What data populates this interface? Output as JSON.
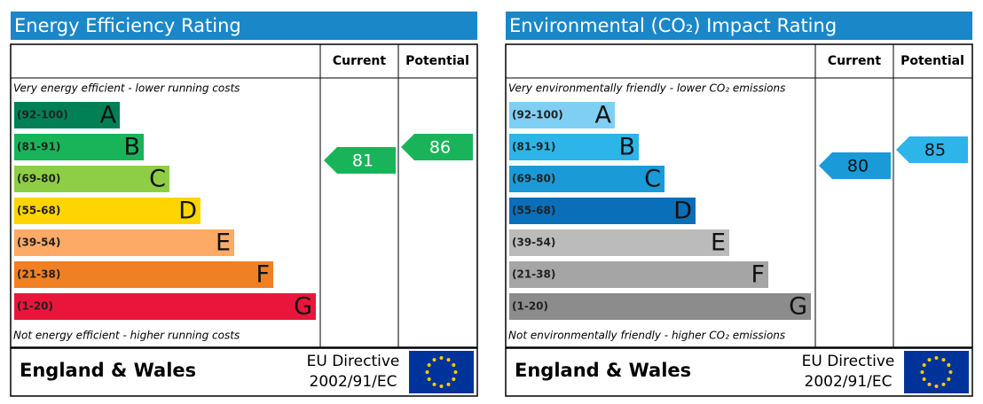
{
  "panels": [
    {
      "title": "Energy Efficiency Rating",
      "columns": [
        "Current",
        "Potential"
      ],
      "top_note": "Very energy efficient - lower running costs",
      "bands": [
        {
          "range": "(92-100)",
          "letter": "A"
        },
        {
          "range": "(81-91)",
          "letter": "B"
        },
        {
          "range": "(69-80)",
          "letter": "C"
        },
        {
          "range": "(55-68)",
          "letter": "D"
        },
        {
          "range": "(39-54)",
          "letter": "E"
        },
        {
          "range": "(21-38)",
          "letter": "F"
        },
        {
          "range": "(1-20)",
          "letter": "G"
        }
      ],
      "bottom_note": "Not energy efficient - higher running costs",
      "current": 81,
      "potential": 86,
      "region": "England & Wales",
      "directive": [
        "EU Directive",
        "2002/91/EC"
      ]
    },
    {
      "title": "Environmental (CO₂) Impact Rating",
      "columns": [
        "Current",
        "Potential"
      ],
      "top_note": "Very environmentally friendly - lower CO₂ emissions",
      "bands": [
        {
          "range": "(92-100)",
          "letter": "A"
        },
        {
          "range": "(81-91)",
          "letter": "B"
        },
        {
          "range": "(69-80)",
          "letter": "C"
        },
        {
          "range": "(55-68)",
          "letter": "D"
        },
        {
          "range": "(39-54)",
          "letter": "E"
        },
        {
          "range": "(21-38)",
          "letter": "F"
        },
        {
          "range": "(1-20)",
          "letter": "G"
        }
      ],
      "bottom_note": "Not environmentally friendly - higher CO₂ emissions",
      "current": 80,
      "potential": 85,
      "region": "England & Wales",
      "directive": [
        "EU Directive",
        "2002/91/EC"
      ]
    }
  ]
}
